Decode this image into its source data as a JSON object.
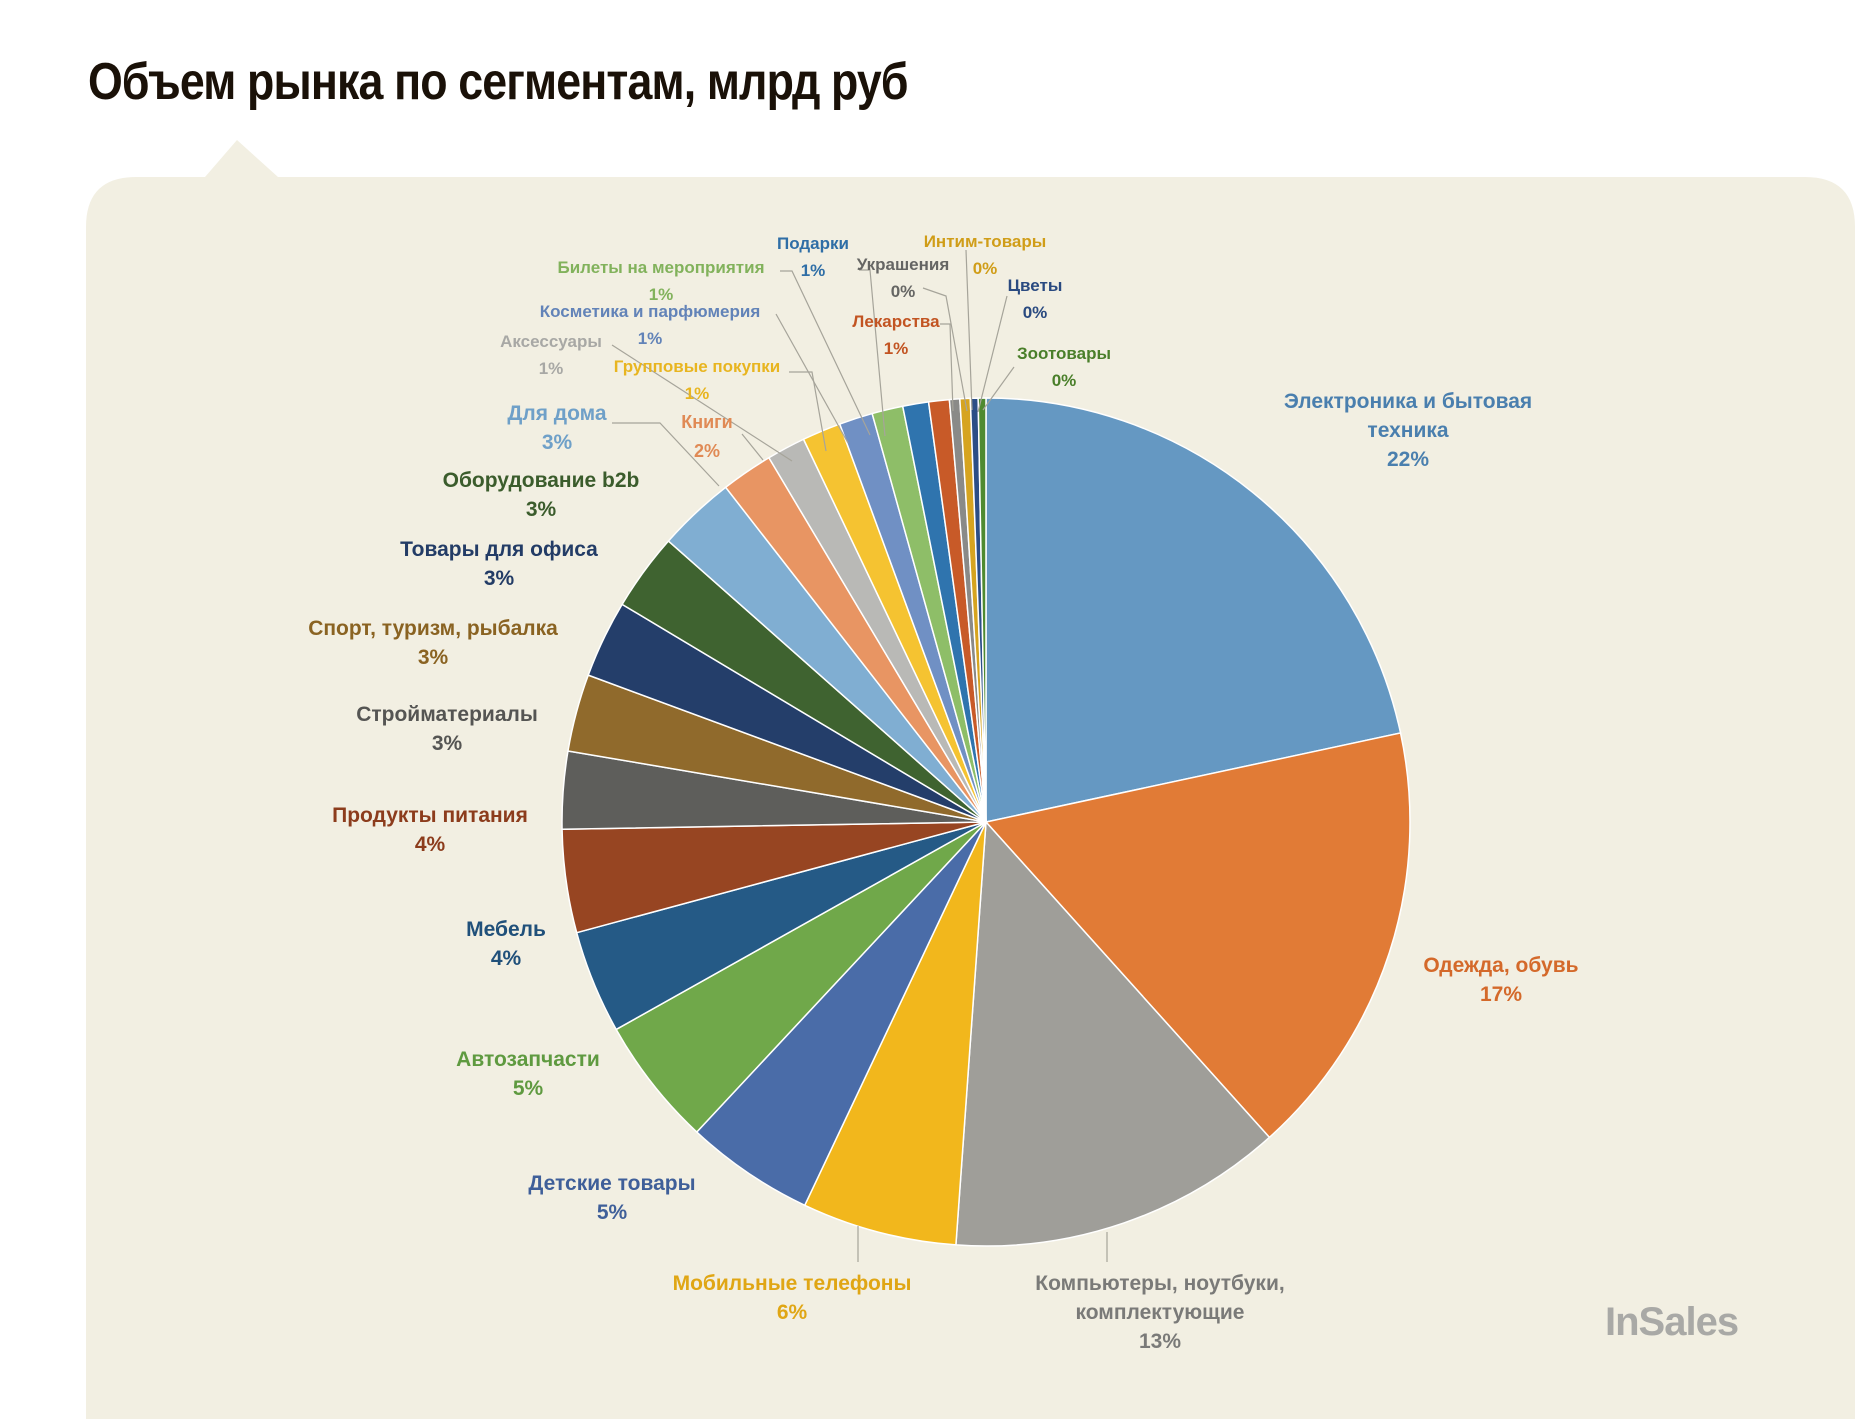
{
  "title": "Объем рынка по сегментам, млрд руб",
  "brand": "InSales",
  "chart_data": {
    "type": "pie",
    "title": "Объем рынка по сегментам, млрд руб",
    "start": "12 o'clock, clockwise",
    "legend": "none (data labels with leader lines)",
    "slices": [
      {
        "label": "Электроника и бытовая техника",
        "lines": [
          "Электроника и бытовая",
          "техника"
        ],
        "pct": "22%",
        "value": 22,
        "color": "#6598c2",
        "text_color": "#4a7fae"
      },
      {
        "label": "Одежда, обувь",
        "lines": [
          "Одежда, обувь"
        ],
        "pct": "17%",
        "value": 17,
        "color": "#e17b36",
        "text_color": "#d4692a"
      },
      {
        "label": "Компьютеры, ноутбуки, комплектующие",
        "lines": [
          "Компьютеры, ноутбуки,",
          "комплектующие"
        ],
        "pct": "13%",
        "value": 13,
        "color": "#9f9e99",
        "text_color": "#7a7a78"
      },
      {
        "label": "Мобильные телефоны",
        "lines": [
          "Мобильные телефоны"
        ],
        "pct": "6%",
        "value": 6,
        "color": "#f2b71c",
        "text_color": "#e0a614"
      },
      {
        "label": "Детские товары",
        "lines": [
          "Детские товары"
        ],
        "pct": "5%",
        "value": 5,
        "color": "#4a6ca8",
        "text_color": "#3f5f99"
      },
      {
        "label": "Автозапчасти",
        "lines": [
          "Автозапчасти"
        ],
        "pct": "5%",
        "value": 5,
        "color": "#70a84a",
        "text_color": "#5f9a40"
      },
      {
        "label": "Мебель",
        "lines": [
          "Мебель"
        ],
        "pct": "4%",
        "value": 4,
        "color": "#255a86",
        "text_color": "#20507a"
      },
      {
        "label": "Продукты питания",
        "lines": [
          "Продукты питания"
        ],
        "pct": "4%",
        "value": 4,
        "color": "#974522",
        "text_color": "#8c3c1c"
      },
      {
        "label": "Стройматериалы",
        "lines": [
          "Стройматериалы"
        ],
        "pct": "3%",
        "value": 3,
        "color": "#5e5e5b",
        "text_color": "#555553"
      },
      {
        "label": "Спорт, туризм, рыбалка",
        "lines": [
          "Спорт, туризм, рыбалка"
        ],
        "pct": "3%",
        "value": 3,
        "color": "#906a2c",
        "text_color": "#8a6322"
      },
      {
        "label": "Товары для офиса",
        "lines": [
          "Товары для офиса"
        ],
        "pct": "3%",
        "value": 3,
        "color": "#243e6a",
        "text_color": "#233c66"
      },
      {
        "label": "Оборудование b2b",
        "lines": [
          "Оборудование b2b"
        ],
        "pct": "3%",
        "value": 3,
        "color": "#3f6330",
        "text_color": "#3b5c2c"
      },
      {
        "label": "Для дома",
        "lines": [
          "Для дома"
        ],
        "pct": "3%",
        "value": 3,
        "color": "#80aed2",
        "text_color": "#6fa0c8"
      },
      {
        "label": "Книги",
        "lines": [
          "Книги"
        ],
        "pct": "2%",
        "value": 2,
        "color": "#e89563",
        "text_color": "#e08a55"
      },
      {
        "label": "Аксессуары",
        "lines": [
          "Аксессуары"
        ],
        "pct": "1%",
        "value": 1.5,
        "color": "#b9b9b6",
        "text_color": "#a8a8a5"
      },
      {
        "label": "Групповые покупки",
        "lines": [
          "Групповые покупки"
        ],
        "pct": "1%",
        "value": 1.5,
        "color": "#f5c331",
        "text_color": "#e8b520"
      },
      {
        "label": "Косметика и парфюмерия",
        "lines": [
          "Косметика и парфюмерия"
        ],
        "pct": "1%",
        "value": 1.3,
        "color": "#7090c4",
        "text_color": "#6283b8"
      },
      {
        "label": "Билеты на мероприятия",
        "lines": [
          "Билеты на мероприятия"
        ],
        "pct": "1%",
        "value": 1.2,
        "color": "#8ebe68",
        "text_color": "#82b25c"
      },
      {
        "label": "Подарки",
        "lines": [
          "Подарки"
        ],
        "pct": "1%",
        "value": 1.0,
        "color": "#2f74ae",
        "text_color": "#2f6ea6"
      },
      {
        "label": "Лекарства",
        "lines": [
          "Лекарства"
        ],
        "pct": "1%",
        "value": 0.8,
        "color": "#c85a28",
        "text_color": "#c25422"
      },
      {
        "label": "Украшения",
        "lines": [
          "Украшения"
        ],
        "pct": "0%",
        "value": 0.4,
        "color": "#8a8a88",
        "text_color": "#666664"
      },
      {
        "label": "Интим-товары",
        "lines": [
          "Интим-товары"
        ],
        "pct": "0%",
        "value": 0.4,
        "color": "#d6a420",
        "text_color": "#d09d18"
      },
      {
        "label": "Цветы",
        "lines": [
          "Цветы"
        ],
        "pct": "0%",
        "value": 0.3,
        "color": "#2c4e86",
        "text_color": "#2a4a80"
      },
      {
        "label": "Зоотовары",
        "lines": [
          "Зоотовары"
        ],
        "pct": "0%",
        "value": 0.3,
        "color": "#4f8a30",
        "text_color": "#4a7f2a"
      }
    ]
  }
}
